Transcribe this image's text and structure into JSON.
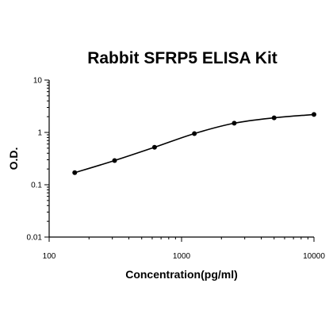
{
  "chart_data": {
    "type": "scatter",
    "title": "Rabbit SFRP5 ELISA Kit",
    "xlabel": "Concentration(pg/ml)",
    "ylabel": "O.D.",
    "x_scale": "log",
    "y_scale": "log",
    "xlim": [
      100,
      10000
    ],
    "ylim": [
      0.01,
      10
    ],
    "x_ticks": [
      "100",
      "1000",
      "10000"
    ],
    "y_ticks": [
      "10",
      "1",
      "0.1",
      "0.01"
    ],
    "grid": false,
    "series": [
      {
        "x": [
          156,
          312,
          625,
          1250,
          2500,
          5000,
          10000
        ],
        "y": [
          0.17,
          0.29,
          0.52,
          0.95,
          1.5,
          1.9,
          2.2
        ]
      }
    ]
  }
}
